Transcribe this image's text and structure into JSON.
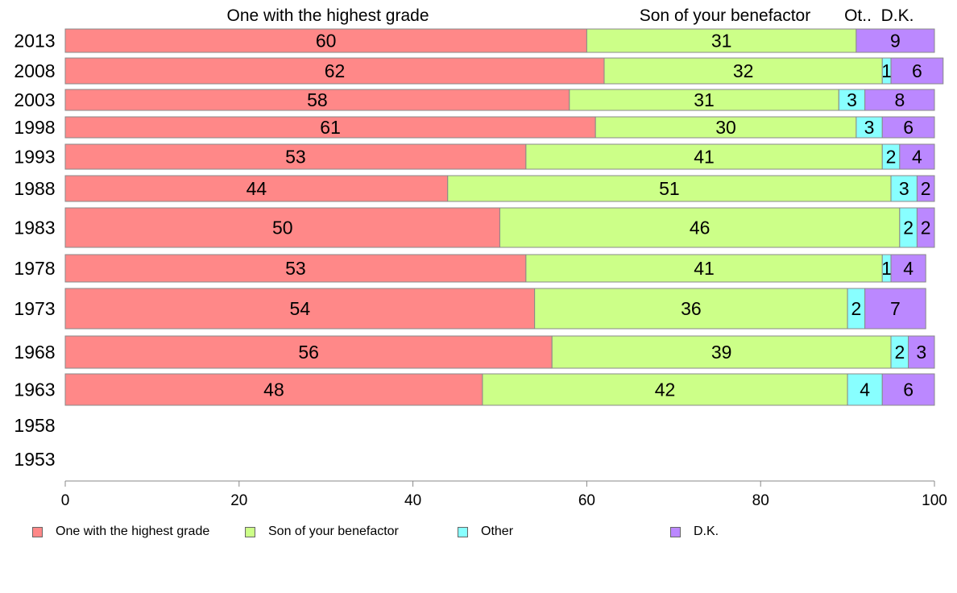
{
  "chart_data": {
    "type": "bar",
    "orientation": "horizontal",
    "stacked": true,
    "categories": [
      "2013",
      "2008",
      "2003",
      "1998",
      "1993",
      "1988",
      "1983",
      "1978",
      "1973",
      "1968",
      "1963",
      "1958",
      "1953"
    ],
    "series": [
      {
        "name": "One with the highest grade",
        "color": "#ff8888",
        "values": [
          60,
          62,
          58,
          61,
          53,
          44,
          50,
          53,
          54,
          56,
          48,
          null,
          null
        ]
      },
      {
        "name": "Son of your benefactor",
        "color": "#ccff88",
        "values": [
          31,
          32,
          31,
          30,
          41,
          51,
          46,
          41,
          36,
          39,
          42,
          null,
          null
        ]
      },
      {
        "name": "Other",
        "color": "#88ffff",
        "values": [
          0,
          1,
          3,
          3,
          2,
          3,
          2,
          1,
          2,
          2,
          4,
          null,
          null
        ]
      },
      {
        "name": "D.K.",
        "color": "#bb88ff",
        "values": [
          9,
          6,
          8,
          6,
          4,
          2,
          2,
          4,
          7,
          3,
          6,
          null,
          null
        ]
      }
    ],
    "data_labels": [
      [
        "60",
        "31",
        "",
        "9"
      ],
      [
        "62",
        "32",
        "1",
        "6"
      ],
      [
        "58",
        "31",
        "3",
        "8"
      ],
      [
        "61",
        "30",
        "3",
        "6"
      ],
      [
        "53",
        "41",
        "2",
        "4"
      ],
      [
        "44",
        "51",
        "3",
        "2"
      ],
      [
        "50",
        "46",
        "2",
        "2"
      ],
      [
        "53",
        "41",
        "1",
        "4"
      ],
      [
        "54",
        "36",
        "2",
        "7"
      ],
      [
        "56",
        "39",
        "2",
        "3"
      ],
      [
        "48",
        "42",
        "4",
        "6"
      ],
      [
        "",
        "",
        "",
        ""
      ],
      [
        "",
        "",
        "",
        ""
      ]
    ],
    "column_headers": [
      "One with the highest grade",
      "Son of your benefactor",
      "Ot..",
      "D.K."
    ],
    "xlim": [
      0,
      100
    ],
    "xticks": [
      "0",
      "20",
      "40",
      "60",
      "80",
      "100"
    ],
    "grid": false,
    "legend_position": "bottom"
  },
  "legend": [
    {
      "label": "One with the highest grade",
      "color": "#ff8888"
    },
    {
      "label": "Son of your benefactor",
      "color": "#ccff88"
    },
    {
      "label": "Other",
      "color": "#88ffff"
    },
    {
      "label": "D.K.",
      "color": "#bb88ff"
    }
  ]
}
